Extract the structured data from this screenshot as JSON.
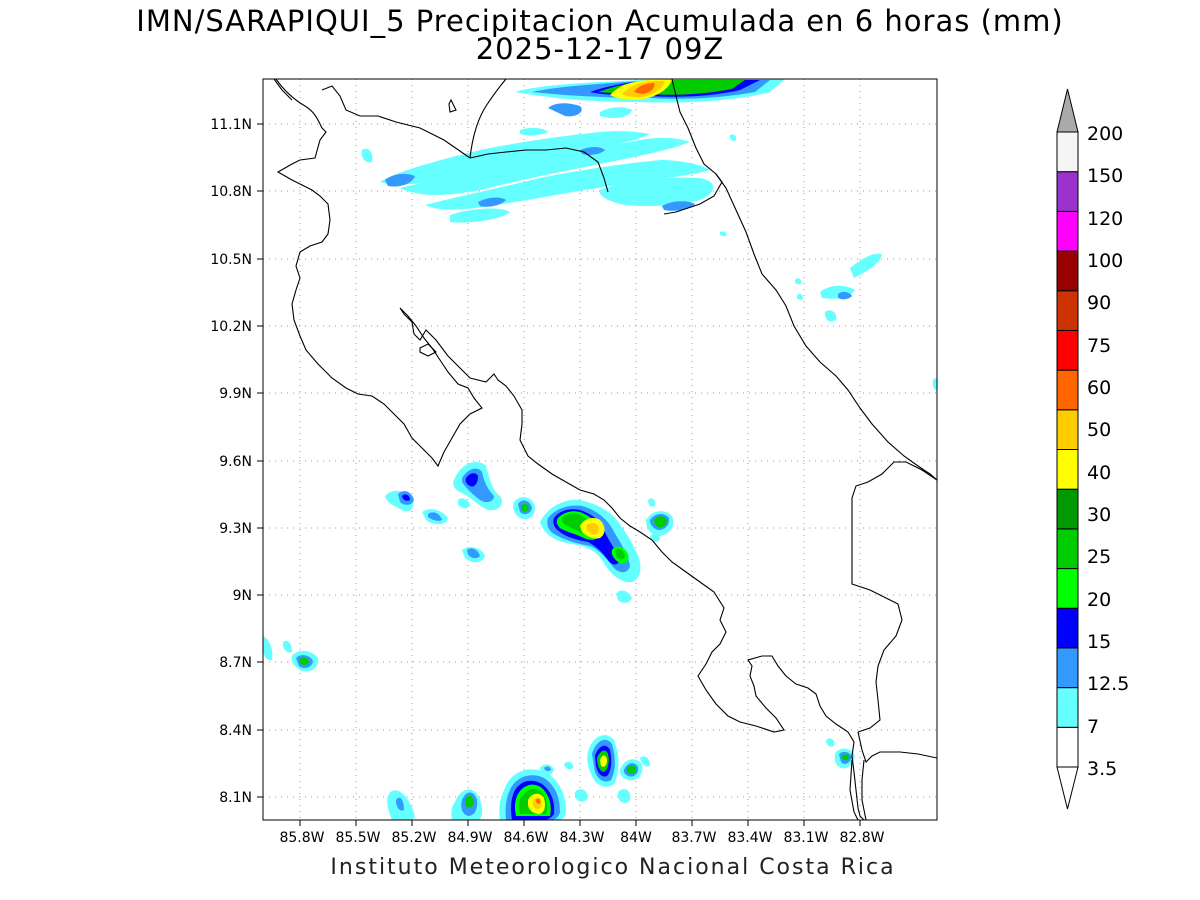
{
  "title": {
    "line1": "IMN/SARAPIQUI_5 Precipitacion Acumulada en 6 horas (mm)",
    "line2": "2025-12-17 09Z"
  },
  "footer": "Instituto Meteorologico Nacional Costa Rica",
  "axes": {
    "y_ticks": [
      "11.1N",
      "10.8N",
      "10.5N",
      "10.2N",
      "9.9N",
      "9.6N",
      "9.3N",
      "9N",
      "8.7N",
      "8.4N",
      "8.1N"
    ],
    "x_ticks": [
      "85.8W",
      "85.5W",
      "85.2W",
      "84.9W",
      "84.6W",
      "84.3W",
      "84W",
      "83.7W",
      "83.4W",
      "83.1W",
      "82.8W"
    ]
  },
  "colorbar": {
    "labels": [
      "3.5",
      "7",
      "12.5",
      "15",
      "20",
      "25",
      "30",
      "40",
      "50",
      "60",
      "75",
      "90",
      "100",
      "120",
      "150",
      "200"
    ],
    "colors": [
      "#ffffff",
      "#66ffff",
      "#3399ff",
      "#0000ff",
      "#00ff00",
      "#00cc00",
      "#009900",
      "#ffff00",
      "#ffcc00",
      "#ff6600",
      "#ff0000",
      "#cc3300",
      "#990000",
      "#ff00ff",
      "#9933cc",
      "#f5f5f5"
    ],
    "top_arrow_color": "#aaaaaa"
  }
}
